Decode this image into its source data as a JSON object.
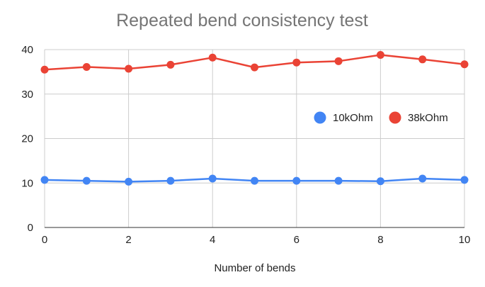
{
  "chart_data": {
    "type": "line",
    "title": "Repeated bend consistency test",
    "xlabel": "Number of bends",
    "ylabel": "",
    "xlim": [
      0,
      10
    ],
    "ylim": [
      0,
      40
    ],
    "x_ticks": [
      0,
      2,
      4,
      6,
      8,
      10
    ],
    "y_ticks": [
      0,
      10,
      20,
      30,
      40
    ],
    "x": [
      0,
      1,
      2,
      3,
      4,
      5,
      6,
      7,
      8,
      9,
      10
    ],
    "grid": true,
    "legend_position": "right",
    "series": [
      {
        "name": "10kOhm",
        "color": "#4285F4",
        "values": [
          10.7,
          10.5,
          10.3,
          10.5,
          11.0,
          10.5,
          10.5,
          10.5,
          10.4,
          11.0,
          10.7
        ]
      },
      {
        "name": "38kOhm",
        "color": "#EA4335",
        "values": [
          35.5,
          36.1,
          35.7,
          36.6,
          38.2,
          36.0,
          37.1,
          37.4,
          38.8,
          37.8,
          36.7
        ]
      }
    ]
  }
}
